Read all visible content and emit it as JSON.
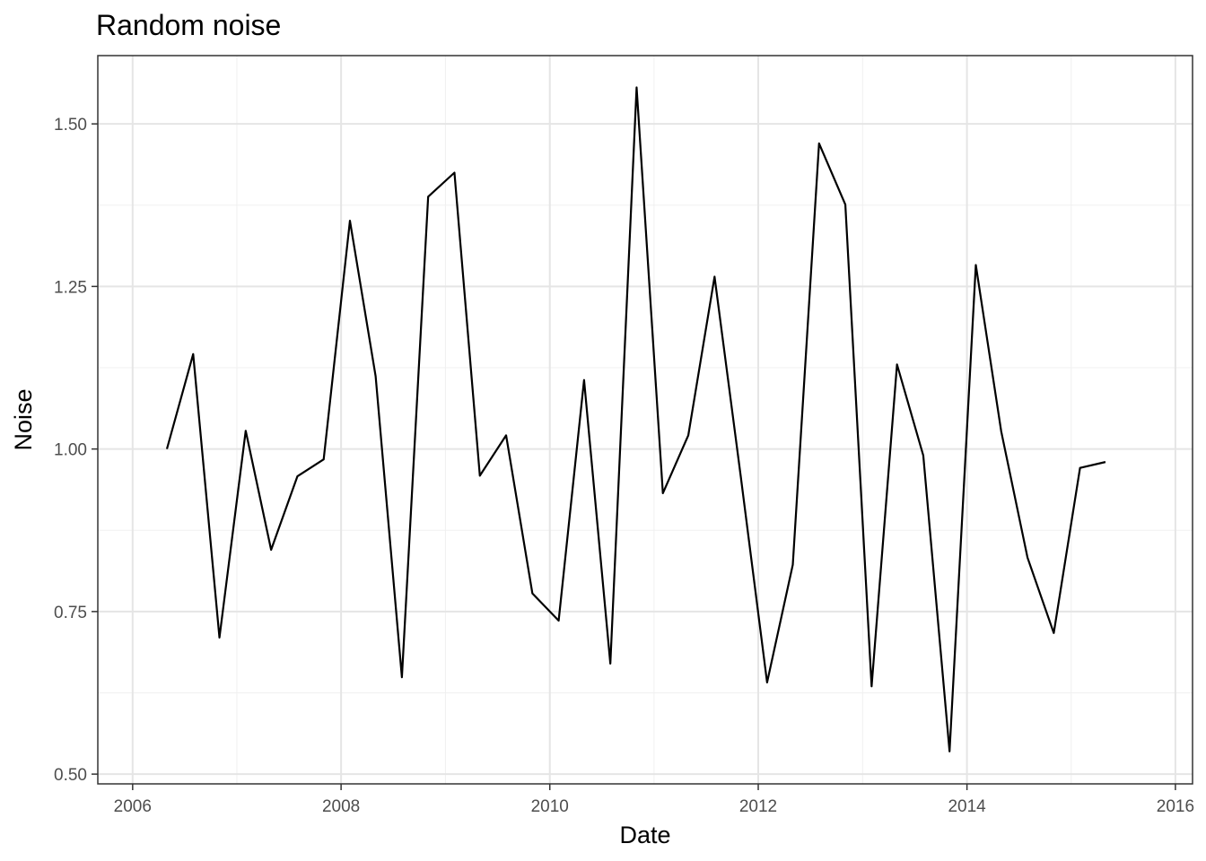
{
  "chart_data": {
    "type": "line",
    "title": "Random noise",
    "xlabel": "Date",
    "ylabel": "Noise",
    "xlim": [
      "2005-09-01",
      "2016-03-01"
    ],
    "ylim": [
      0.485,
      1.605
    ],
    "x_ticks": [
      "2006-01-01",
      "2008-01-01",
      "2010-01-01",
      "2012-01-01",
      "2014-01-01",
      "2016-01-01"
    ],
    "x_tick_labels": [
      "2006",
      "2008",
      "2010",
      "2012",
      "2014",
      "2016"
    ],
    "y_ticks": [
      0.5,
      0.75,
      1.0,
      1.25,
      1.5
    ],
    "y_tick_labels": [
      "0.50",
      "0.75",
      "1.00",
      "1.25",
      "1.50"
    ],
    "grid": true,
    "legend": "none",
    "colors": {
      "line": "#000000",
      "grid": "#e5e5e5",
      "border": "#333333"
    },
    "series": [
      {
        "x": [
          "2006-05-01",
          "2006-08-01",
          "2006-11-01",
          "2007-02-01",
          "2007-05-01",
          "2007-08-01",
          "2007-11-01",
          "2008-02-01",
          "2008-05-01",
          "2008-08-01",
          "2008-11-01",
          "2009-02-01",
          "2009-05-01",
          "2009-08-01",
          "2009-11-01",
          "2010-02-01",
          "2010-05-01",
          "2010-08-01",
          "2010-11-01",
          "2011-02-01",
          "2011-05-01",
          "2011-08-01",
          "2011-11-01",
          "2012-02-01",
          "2012-05-01",
          "2012-08-01",
          "2012-11-01",
          "2013-02-01",
          "2013-05-01",
          "2013-08-01",
          "2013-11-01",
          "2014-02-01",
          "2014-05-01",
          "2014-08-01",
          "2014-11-01",
          "2015-02-01",
          "2015-05-01"
        ],
        "y": [
          1.0,
          1.146,
          0.71,
          1.028,
          0.845,
          0.958,
          0.984,
          1.351,
          1.112,
          0.649,
          1.388,
          1.425,
          0.959,
          1.021,
          0.778,
          0.736,
          1.106,
          0.67,
          1.556,
          0.932,
          1.021,
          1.265,
          0.957,
          0.641,
          0.822,
          1.47,
          1.376,
          0.635,
          1.13,
          0.99,
          0.535,
          1.283,
          1.027,
          0.833,
          0.717,
          0.971,
          0.98
        ]
      }
    ]
  }
}
